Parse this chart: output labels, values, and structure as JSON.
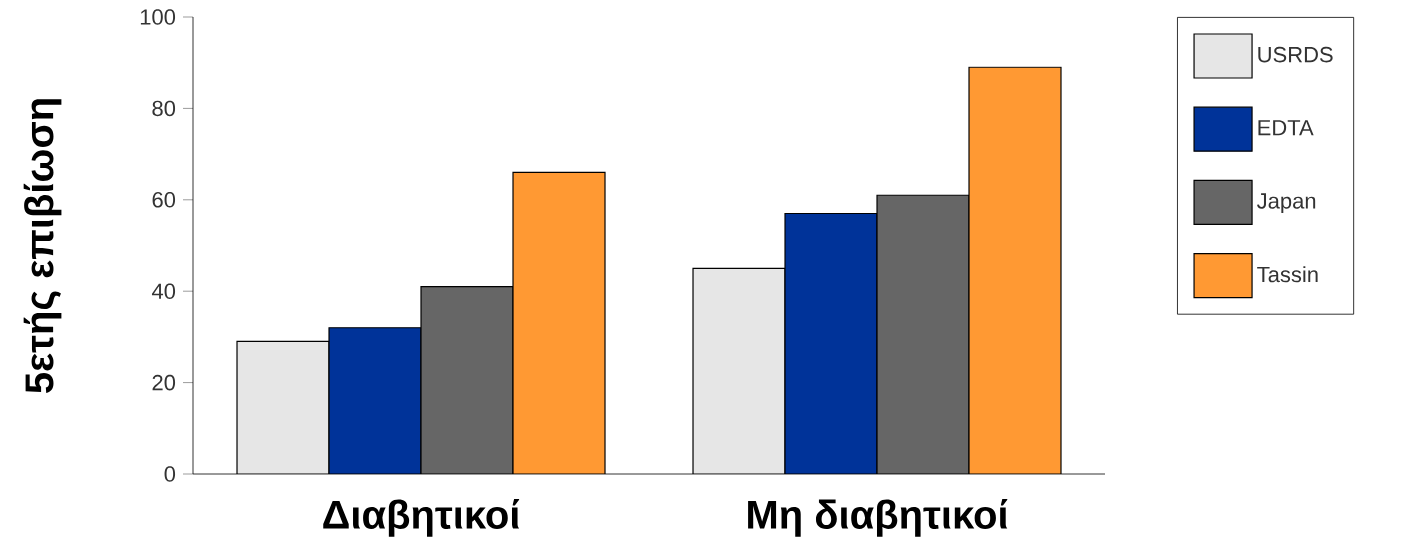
{
  "chart_data": {
    "type": "bar",
    "ylabel": "5ετής επιβίωση",
    "categories": [
      "Διαβητικοί",
      "Μη διαβητικοί"
    ],
    "series": [
      {
        "name": "USRDS",
        "color": "#e6e6e6",
        "values": [
          29,
          45
        ]
      },
      {
        "name": "EDTA",
        "color": "#003399",
        "values": [
          32,
          57
        ]
      },
      {
        "name": "Japan",
        "color": "#666666",
        "values": [
          41,
          61
        ]
      },
      {
        "name": "Tassin",
        "color": "#ff9933",
        "values": [
          66,
          89
        ]
      }
    ],
    "ylim": [
      0,
      100
    ],
    "yticks": [
      0,
      20,
      40,
      60,
      80,
      100
    ],
    "grid": false,
    "legend": "right"
  }
}
